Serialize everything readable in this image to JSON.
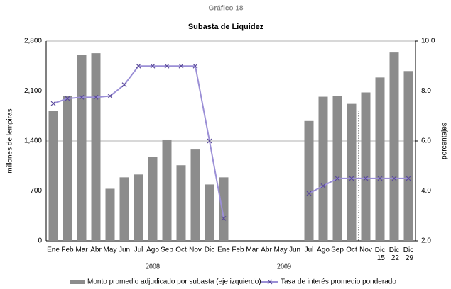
{
  "chart_data": {
    "type": "bar_line",
    "title": "Gráfico 18",
    "subtitle": "Subasta de Liquidez",
    "ylabel": "millones de lempiras",
    "y2label": "porcentajes",
    "categories": [
      "Ene",
      "Feb",
      "Mar",
      "Abr",
      "May",
      "Jun",
      "Jul",
      "Ago",
      "Sep",
      "Oct",
      "Nov",
      "Dic",
      "Ene",
      "Feb",
      "Mar",
      "Abr",
      "May",
      "Jun",
      "Jul",
      "Ago",
      "Sep",
      "Oct",
      "Nov",
      "Dic 15",
      "Dic 22",
      "Dic 29"
    ],
    "year_labels": [
      "2008",
      "2009"
    ],
    "series": [
      {
        "name": "Monto promedio adjudicado por subasta (eje izquierdo)",
        "color": "#8c8c8c",
        "axis": "y",
        "values": [
          1820,
          2030,
          2610,
          2630,
          730,
          890,
          930,
          1180,
          1420,
          1060,
          1280,
          790,
          890,
          null,
          null,
          null,
          null,
          null,
          1680,
          2020,
          2030,
          1920,
          2080,
          2290,
          2640,
          2380
        ]
      },
      {
        "name": "Tasa de interés promedio ponderado",
        "color": "#9b8fd6",
        "axis": "y2",
        "values": [
          7.5,
          7.7,
          7.75,
          7.75,
          7.8,
          8.25,
          9.0,
          9.0,
          9.0,
          9.0,
          9.0,
          6.0,
          2.9,
          null,
          null,
          null,
          null,
          null,
          3.9,
          4.2,
          4.5,
          4.5,
          4.5,
          4.5,
          4.5,
          4.5
        ]
      }
    ],
    "ylim": [
      0,
      2800
    ],
    "yticks": [
      0,
      700,
      {
        "value": 1400,
        "label": "1,400"
      },
      {
        "value": 2100,
        "label": "2,100"
      },
      {
        "value": 2800,
        "label": "2,800"
      }
    ],
    "y2lim": [
      2,
      10
    ],
    "y2ticks": [
      {
        "value": 2,
        "label": "2.0"
      },
      {
        "value": 4,
        "label": "4.0"
      },
      {
        "value": 6,
        "label": "6.0"
      },
      {
        "value": 8,
        "label": "8.0"
      },
      {
        "value": 10,
        "label": "10.0"
      }
    ],
    "grid": true
  }
}
